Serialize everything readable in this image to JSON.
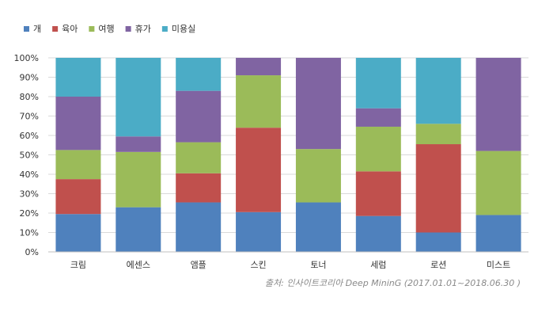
{
  "chart_data": {
    "type": "bar",
    "stacked": true,
    "categories": [
      "크림",
      "에센스",
      "앰플",
      "스킨",
      "토너",
      "세럼",
      "로션",
      "미스트"
    ],
    "series": [
      {
        "name": "개",
        "color": "#4f81bd",
        "values": [
          19.5,
          23,
          25.5,
          20.5,
          25.5,
          18.5,
          10,
          19
        ]
      },
      {
        "name": "육아",
        "color": "#c0504d",
        "values": [
          18,
          0,
          15,
          43.5,
          0,
          23,
          45.5,
          0
        ]
      },
      {
        "name": "여행",
        "color": "#9bbb59",
        "values": [
          15,
          28.5,
          16,
          27,
          27.5,
          23,
          10.5,
          33
        ]
      },
      {
        "name": "휴가",
        "color": "#8064a2",
        "values": [
          27.5,
          8,
          26.5,
          9,
          47,
          9.5,
          0,
          48
        ]
      },
      {
        "name": "미용실",
        "color": "#4bacc6",
        "values": [
          20,
          40.5,
          17,
          0,
          0,
          26,
          34,
          0
        ]
      }
    ],
    "ylim": [
      0,
      100
    ],
    "yticks": [
      "0%",
      "10%",
      "20%",
      "30%",
      "40%",
      "50%",
      "60%",
      "70%",
      "80%",
      "90%",
      "100%"
    ],
    "legend_position": "top-left",
    "grid": true
  },
  "source_note": "출처: 인사이트코리아 Deep MininG (2017.01.01~2018.06.30 )"
}
